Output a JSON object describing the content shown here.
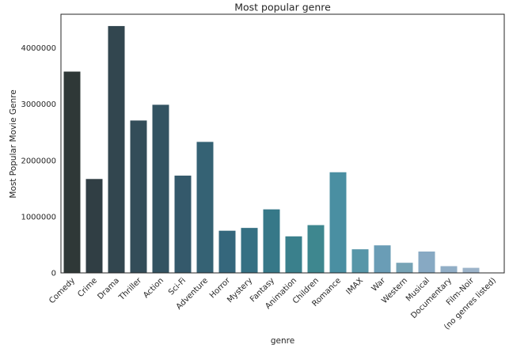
{
  "chart_data": {
    "type": "bar",
    "title": "Most popular genre",
    "xlabel": "genre",
    "ylabel": "Most Popular Movie Genre",
    "ylim": [
      0,
      4600000
    ],
    "yticks": [
      0,
      1000000,
      2000000,
      3000000,
      4000000
    ],
    "ytick_labels": [
      "0",
      "1000000",
      "2000000",
      "3000000",
      "4000000"
    ],
    "grid": false,
    "categories": [
      "Comedy",
      "Crime",
      "Drama",
      "Thriller",
      "Action",
      "Sci-Fi",
      "Adventure",
      "Horror",
      "Mystery",
      "Fantasy",
      "Animation",
      "Children",
      "Romance",
      "IMAX",
      "War",
      "Western",
      "Musical",
      "Documentary",
      "Film-Noir",
      "(no genres listed)"
    ],
    "values": [
      3580000,
      1670000,
      4390000,
      2710000,
      2990000,
      1730000,
      2330000,
      750000,
      800000,
      1130000,
      650000,
      850000,
      1790000,
      420000,
      490000,
      180000,
      380000,
      120000,
      90000,
      5000
    ],
    "colors": [
      "#2f3837",
      "#303e44",
      "#32464f",
      "#334d59",
      "#335362",
      "#34596b",
      "#356274",
      "#35677c",
      "#357083",
      "#367888",
      "#3a808c",
      "#3e878f",
      "#4a8fa2",
      "#5796a8",
      "#6a9db6",
      "#76a3b5",
      "#87a9c3",
      "#91aec6",
      "#9cb3c9",
      "#a9bacc"
    ]
  }
}
